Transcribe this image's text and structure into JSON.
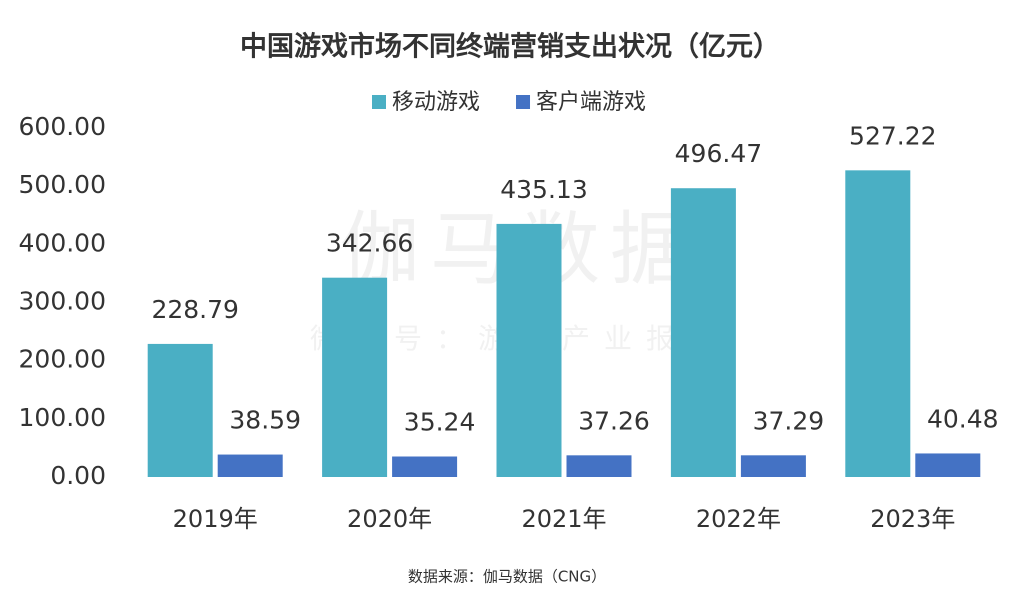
{
  "chart_data": {
    "type": "bar",
    "title": "中国游戏市场不同终端营销支出状况（亿元）",
    "categories": [
      "2019年",
      "2020年",
      "2021年",
      "2022年",
      "2023年"
    ],
    "series": [
      {
        "name": "移动游戏",
        "color": "#4aafc4",
        "values": [
          228.79,
          342.66,
          435.13,
          496.47,
          527.22
        ]
      },
      {
        "name": "客户端游戏",
        "color": "#4472c4",
        "values": [
          38.59,
          35.24,
          37.26,
          37.29,
          40.48
        ]
      }
    ],
    "ylim": [
      0,
      600
    ],
    "yticks": [
      {
        "value": 0,
        "label": "0.00"
      },
      {
        "value": 100,
        "label": "100.00"
      },
      {
        "value": 200,
        "label": "200.00"
      },
      {
        "value": 300,
        "label": "300.00"
      },
      {
        "value": 400,
        "label": "400.00"
      },
      {
        "value": 500,
        "label": "500.00"
      },
      {
        "value": 600,
        "label": "600.00"
      }
    ],
    "grid": false,
    "legend": "top",
    "watermark": [
      "伽马数据",
      "微信号：游戏产业报告"
    ],
    "source": "数据来源：伽马数据（CNG）"
  }
}
